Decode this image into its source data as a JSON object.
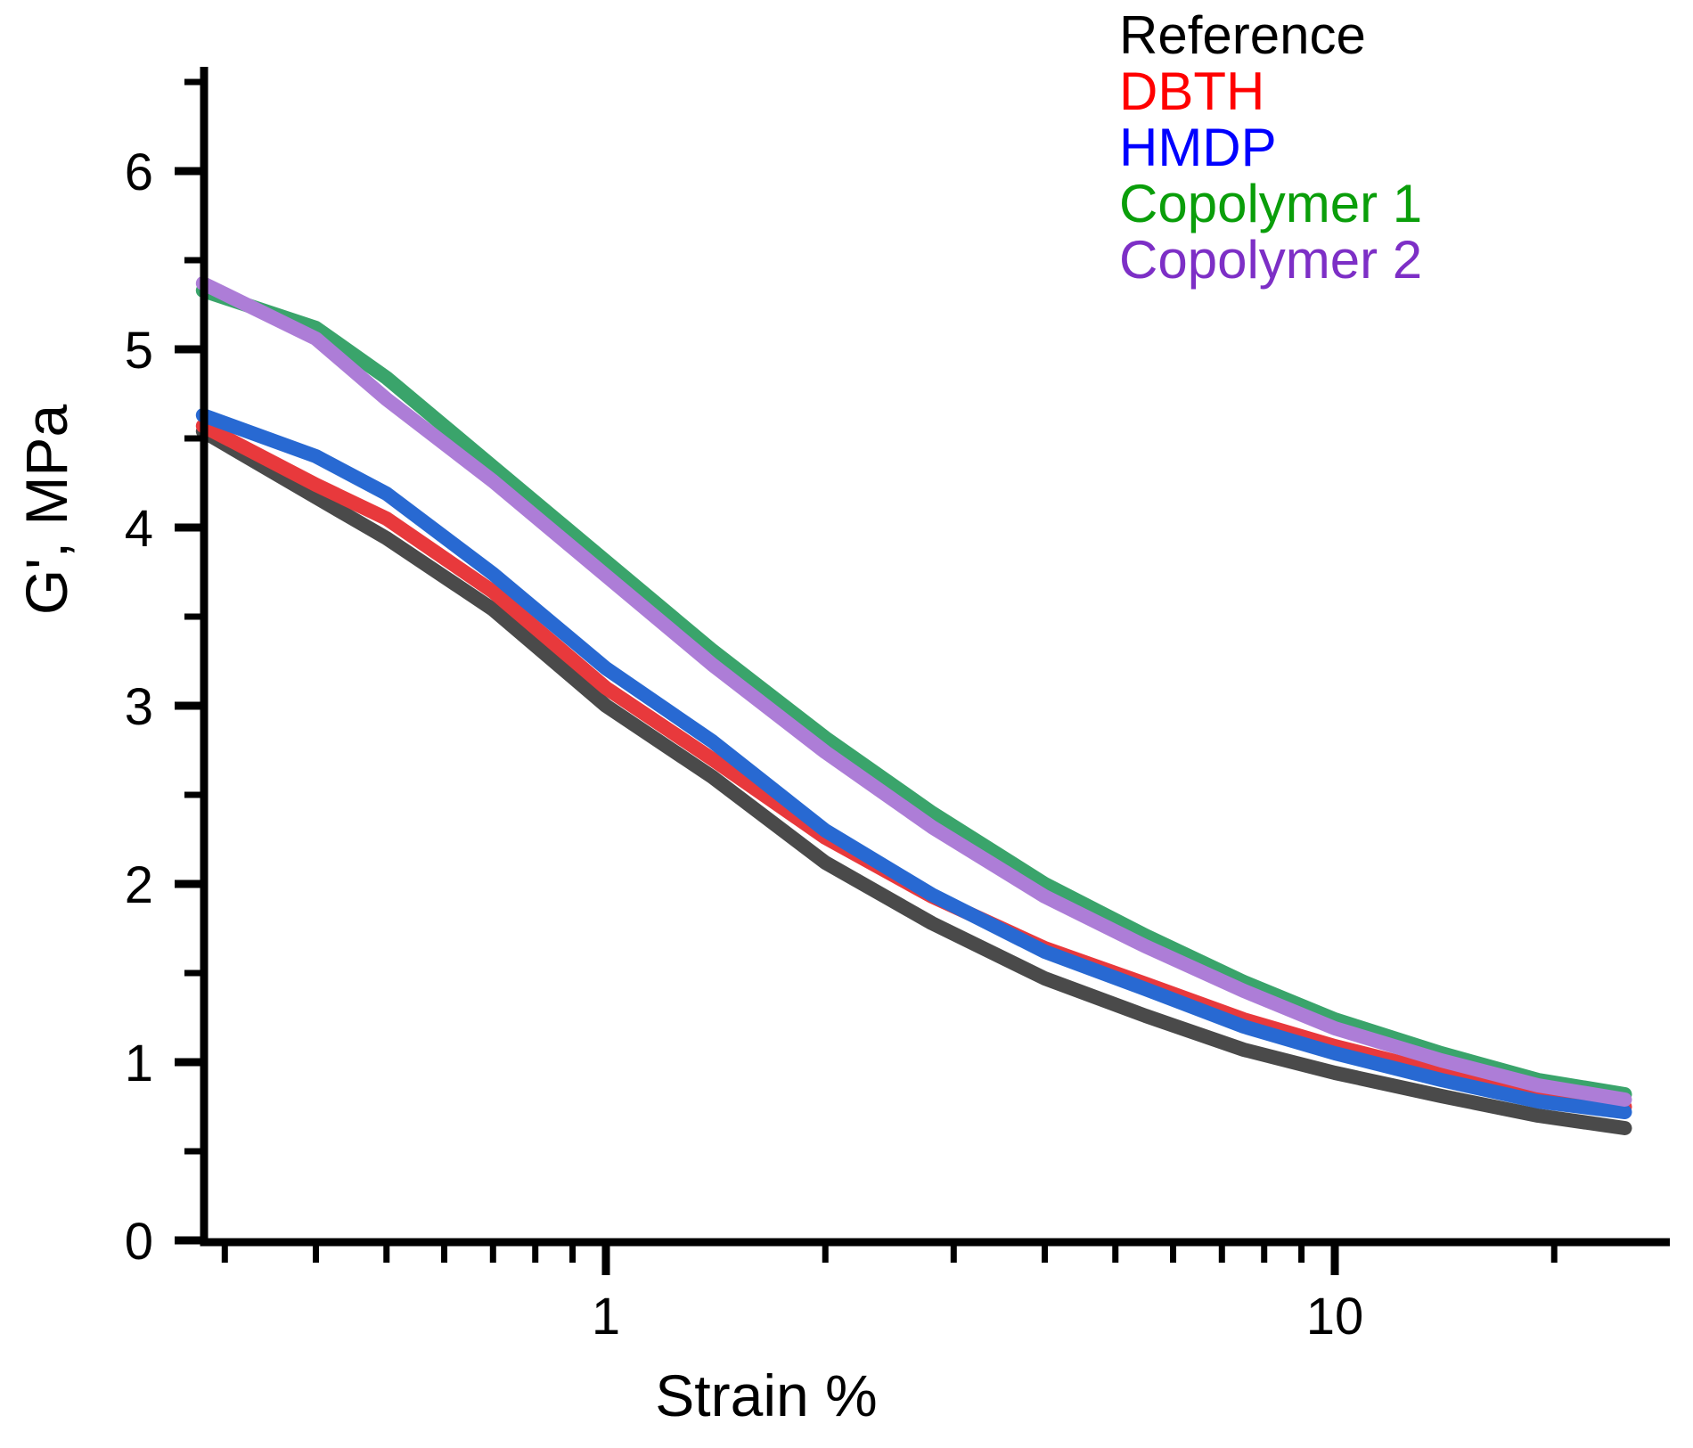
{
  "chart_data": {
    "type": "line",
    "title": "",
    "xlabel": "Strain %",
    "ylabel": "G', MPa",
    "x_scale": "log",
    "y_scale": "linear",
    "xlim": [
      0.272,
      29
    ],
    "ylim": [
      0,
      6.6
    ],
    "grid": false,
    "legend_position": "top-right",
    "x": [
      0.28,
      0.4,
      0.5,
      0.7,
      1,
      1.4,
      2,
      2.8,
      4,
      5.5,
      7.5,
      10,
      14,
      19,
      25
    ],
    "series": [
      {
        "name": "Reference",
        "line_color": "#4a4a4a",
        "legend_color": "#000000",
        "values": [
          4.54,
          4.17,
          3.94,
          3.54,
          3.0,
          2.6,
          2.12,
          1.78,
          1.47,
          1.26,
          1.07,
          0.94,
          0.81,
          0.7,
          0.63
        ]
      },
      {
        "name": "DBTH",
        "line_color": "#e8393c",
        "legend_color": "#ff0000",
        "values": [
          4.57,
          4.24,
          4.05,
          3.64,
          3.1,
          2.7,
          2.26,
          1.93,
          1.64,
          1.44,
          1.24,
          1.09,
          0.94,
          0.82,
          0.75
        ]
      },
      {
        "name": "HMDP",
        "line_color": "#2869d2",
        "legend_color": "#0000ff",
        "values": [
          4.63,
          4.4,
          4.19,
          3.74,
          3.21,
          2.8,
          2.3,
          1.94,
          1.62,
          1.41,
          1.2,
          1.05,
          0.9,
          0.78,
          0.72
        ]
      },
      {
        "name": "Copolymer 1",
        "line_color": "#3aa46b",
        "legend_color": "#0a9e0a",
        "values": [
          5.33,
          5.12,
          4.84,
          4.34,
          3.81,
          3.31,
          2.82,
          2.4,
          2.0,
          1.71,
          1.45,
          1.24,
          1.05,
          0.9,
          0.82
        ]
      },
      {
        "name": "Copolymer 2",
        "line_color": "#ad7dd7",
        "legend_color": "#7d2fc6",
        "values": [
          5.37,
          5.06,
          4.72,
          4.26,
          3.73,
          3.23,
          2.74,
          2.32,
          1.93,
          1.65,
          1.4,
          1.19,
          1.01,
          0.87,
          0.79
        ]
      }
    ],
    "x_axis": {
      "major_ticks": [
        1,
        10
      ],
      "major_tick_labels": [
        "1",
        "10"
      ],
      "minor_ticks": [
        0.3,
        0.4,
        0.5,
        0.6,
        0.7,
        0.8,
        0.9,
        2,
        3,
        4,
        5,
        6,
        7,
        8,
        9,
        20
      ]
    },
    "y_axis": {
      "major_ticks": [
        0,
        1,
        2,
        3,
        4,
        5,
        6
      ],
      "major_tick_labels": [
        "0",
        "1",
        "2",
        "3",
        "4",
        "5",
        "6"
      ],
      "minor_ticks": [
        0.5,
        1.5,
        2.5,
        3.5,
        4.5,
        5.5,
        6.5
      ]
    }
  }
}
